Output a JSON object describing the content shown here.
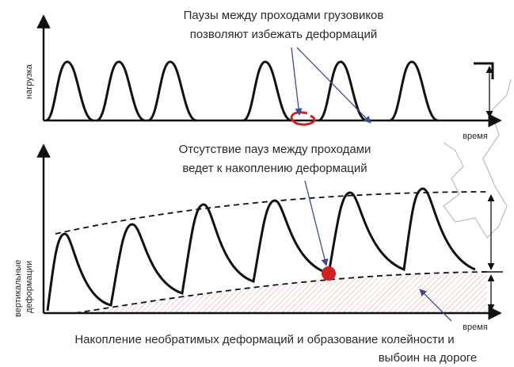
{
  "top_panel": {
    "annotation": [
      "Паузы между проходами грузовиков",
      "позволяют избежать деформаций"
    ],
    "y_label": "нагрузка",
    "x_label": "время"
  },
  "bottom_panel": {
    "annotation": [
      "Отсутствие пауз между проходами",
      "ведет к накоплению деформаций"
    ],
    "y_label": [
      "вертикальные",
      "деформации"
    ],
    "x_label": "время"
  },
  "caption": [
    "Накопление необратимых деформаций и образование колейности и",
    "выбоин на дороге"
  ]
}
